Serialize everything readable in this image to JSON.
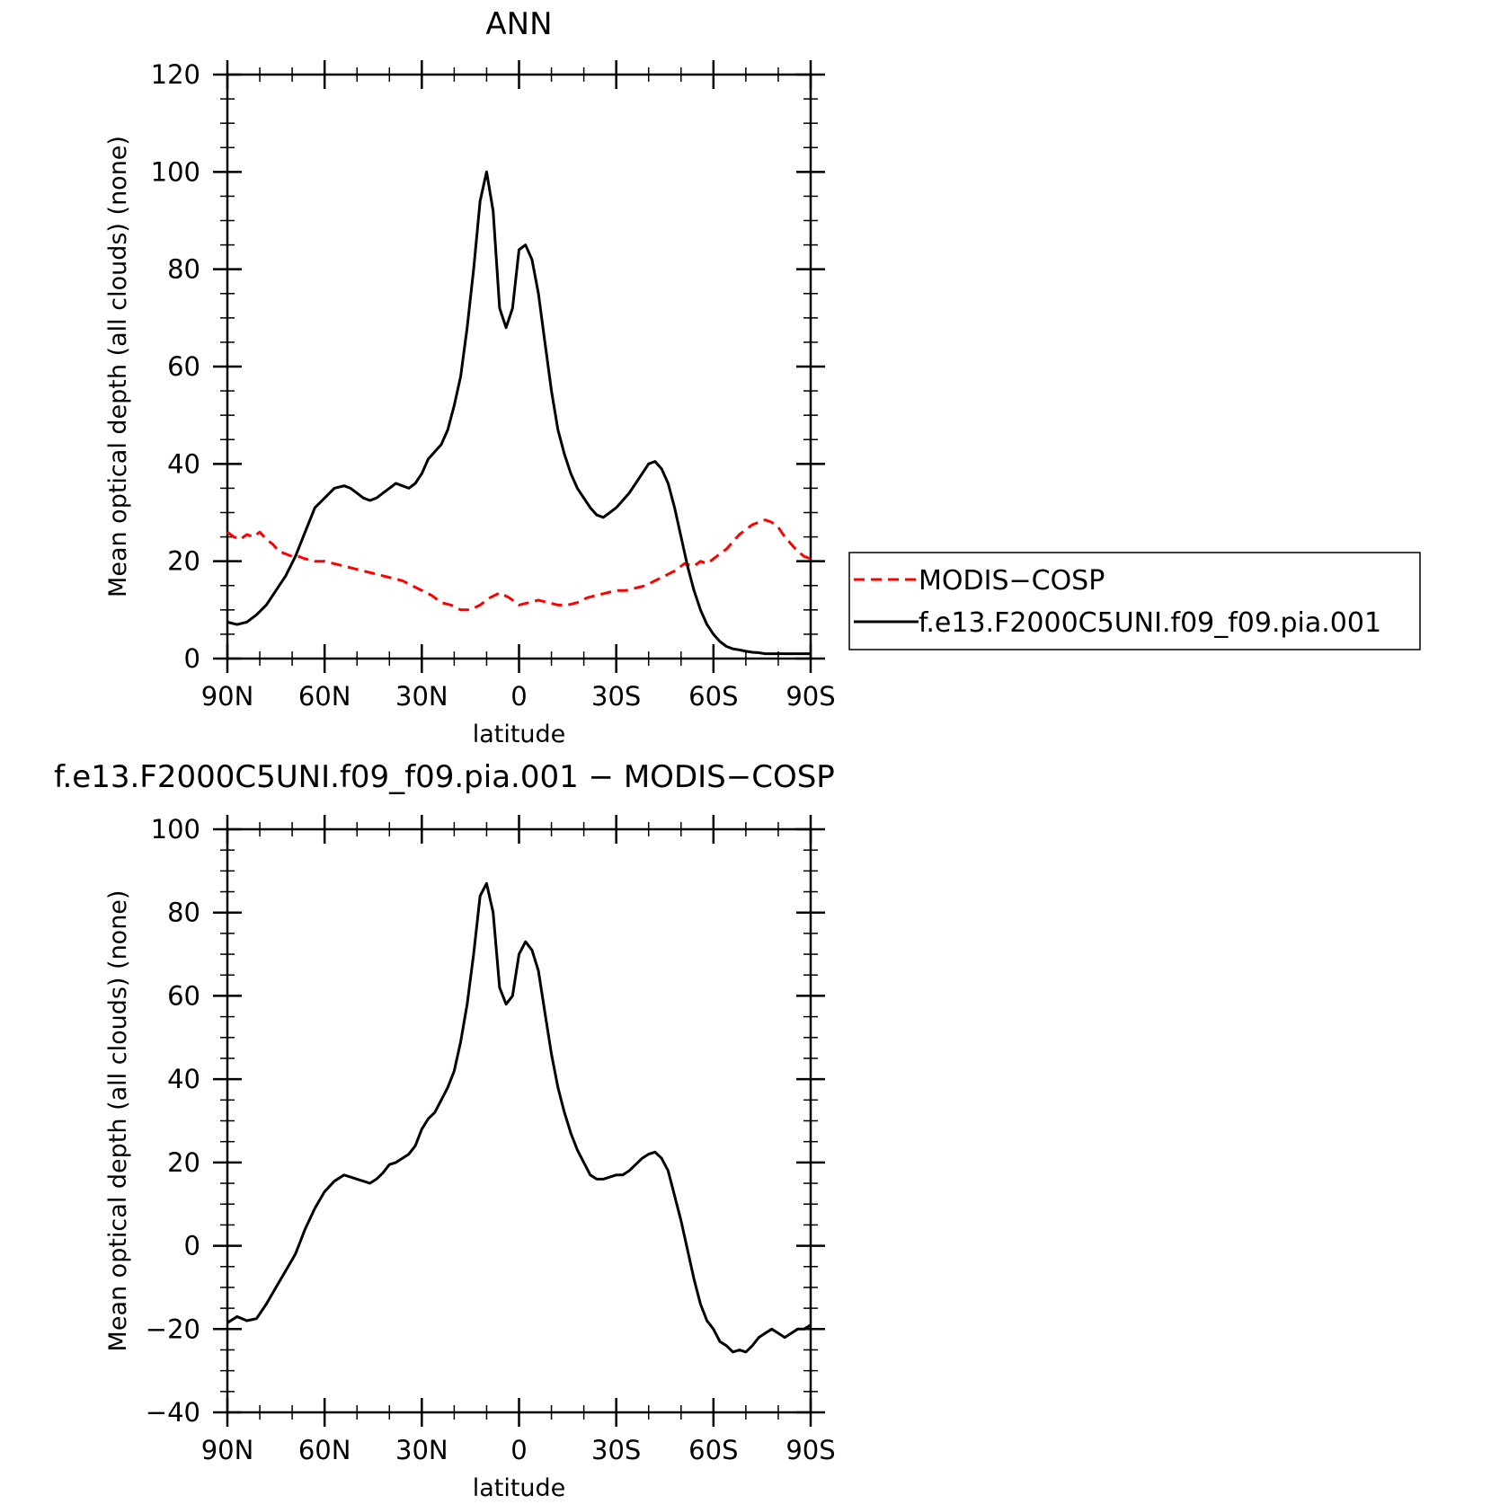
{
  "chart_data": [
    {
      "type": "line",
      "title": "ANN",
      "xlabel": "latitude",
      "ylabel": "Mean optical depth (all clouds) (none)",
      "xlim": [
        90,
        -90
      ],
      "ylim": [
        0,
        120
      ],
      "x_ticks": [
        90,
        60,
        30,
        0,
        -30,
        -60,
        -90
      ],
      "x_tick_labels": [
        "90N",
        "60N",
        "30N",
        "0",
        "30S",
        "60S",
        "90S"
      ],
      "y_ticks": [
        0,
        20,
        40,
        60,
        80,
        100,
        120
      ],
      "y_tick_labels": [
        "0",
        "20",
        "40",
        "60",
        "80",
        "100",
        "120"
      ],
      "legend_position": "right",
      "series": [
        {
          "name": "MODIS−COSP",
          "color": "#ff0000",
          "style": "dashed",
          "x": [
            90,
            88,
            86,
            84,
            82,
            80,
            78,
            76,
            74,
            72,
            70,
            68,
            66,
            63,
            60,
            57,
            54,
            51,
            48,
            45,
            42,
            39,
            36,
            33,
            30,
            27,
            24,
            21,
            18,
            15,
            12,
            9,
            6,
            3,
            0,
            -3,
            -6,
            -9,
            -12,
            -15,
            -18,
            -21,
            -24,
            -27,
            -30,
            -33,
            -36,
            -39,
            -42,
            -45,
            -48,
            -51,
            -54,
            -56,
            -58,
            -60,
            -62,
            -64,
            -66,
            -68,
            -70,
            -72,
            -74,
            -76,
            -78,
            -80,
            -82,
            -84,
            -86,
            -88,
            -90
          ],
          "values": [
            26,
            25,
            24.5,
            25.5,
            25,
            26,
            24.5,
            23.5,
            22,
            21.5,
            21,
            21,
            20.5,
            20,
            20,
            19.5,
            19,
            18.5,
            18,
            17.5,
            17,
            16.5,
            16,
            15,
            14,
            13,
            11.5,
            11,
            10,
            10,
            11,
            12.5,
            13.5,
            12.5,
            11,
            11.5,
            12,
            11.5,
            11,
            11,
            11.5,
            12.5,
            13,
            13.5,
            14,
            14,
            14.5,
            15,
            16,
            17,
            18,
            19.5,
            19,
            20,
            19.5,
            20.5,
            21.5,
            22.5,
            24,
            25.5,
            26.5,
            27.5,
            28,
            28.5,
            28,
            27,
            25,
            23.5,
            22,
            21,
            20.5
          ]
        },
        {
          "name": "f.e13.F2000C5UNI.f09_f09.pia.001",
          "color": "#000000",
          "style": "solid",
          "x": [
            90,
            87,
            84,
            81,
            78,
            75,
            72,
            69,
            66,
            63,
            60,
            57,
            54,
            52,
            50,
            48,
            46,
            44,
            42,
            40,
            38,
            36,
            34,
            32,
            30,
            28,
            26,
            24,
            22,
            20,
            18,
            16,
            14,
            12,
            10,
            8,
            6,
            4,
            2,
            0,
            -2,
            -4,
            -6,
            -8,
            -10,
            -12,
            -14,
            -16,
            -18,
            -20,
            -22,
            -24,
            -26,
            -28,
            -30,
            -32,
            -34,
            -36,
            -38,
            -40,
            -42,
            -44,
            -46,
            -48,
            -50,
            -52,
            -54,
            -56,
            -58,
            -60,
            -62,
            -64,
            -66,
            -68,
            -70,
            -72,
            -74,
            -76,
            -78,
            -80,
            -82,
            -84,
            -86,
            -88,
            -90
          ],
          "values": [
            7.5,
            7,
            7.5,
            9,
            11,
            14,
            17,
            21,
            26,
            31,
            33,
            35,
            35.5,
            35,
            34,
            33,
            32.5,
            33,
            34,
            35,
            36,
            35.5,
            35,
            36,
            38,
            41,
            42.5,
            44,
            47,
            52,
            58,
            68,
            80,
            94,
            100,
            92,
            72,
            68,
            72,
            84,
            85,
            82,
            75,
            65,
            55,
            47,
            42,
            38,
            35,
            33,
            31,
            29.5,
            29,
            30,
            31,
            32.5,
            34,
            36,
            38,
            40,
            40.5,
            39,
            36,
            31,
            25,
            19,
            14,
            10,
            7,
            5,
            3.5,
            2.5,
            2,
            1.8,
            1.5,
            1.3,
            1.2,
            1,
            1,
            1,
            1,
            1,
            1,
            1,
            1
          ]
        }
      ]
    },
    {
      "type": "line",
      "title": "f.e13.F2000C5UNI.f09_f09.pia.001 − MODIS−COSP",
      "xlabel": "latitude",
      "ylabel": "Mean optical depth (all clouds) (none)",
      "xlim": [
        90,
        -90
      ],
      "ylim": [
        -40,
        100
      ],
      "x_ticks": [
        90,
        60,
        30,
        0,
        -30,
        -60,
        -90
      ],
      "x_tick_labels": [
        "90N",
        "60N",
        "30N",
        "0",
        "30S",
        "60S",
        "90S"
      ],
      "y_ticks": [
        -40,
        -20,
        0,
        20,
        40,
        60,
        80,
        100
      ],
      "y_tick_labels": [
        "−40",
        "−20",
        "0",
        "20",
        "40",
        "60",
        "80",
        "100"
      ],
      "series": [
        {
          "color": "#000000",
          "style": "solid",
          "x": [
            90,
            87,
            84,
            81,
            78,
            75,
            72,
            69,
            66,
            63,
            60,
            57,
            54,
            52,
            50,
            48,
            46,
            44,
            42,
            40,
            38,
            36,
            34,
            32,
            30,
            28,
            26,
            24,
            22,
            20,
            18,
            16,
            14,
            12,
            10,
            8,
            6,
            4,
            2,
            0,
            -2,
            -4,
            -6,
            -8,
            -10,
            -12,
            -14,
            -16,
            -18,
            -20,
            -22,
            -24,
            -26,
            -28,
            -30,
            -32,
            -34,
            -36,
            -38,
            -40,
            -42,
            -44,
            -46,
            -48,
            -50,
            -52,
            -54,
            -56,
            -58,
            -60,
            -62,
            -64,
            -66,
            -68,
            -70,
            -72,
            -74,
            -76,
            -78,
            -80,
            -82,
            -84,
            -86,
            -88,
            -90
          ],
          "values": [
            -18.5,
            -17,
            -18,
            -17.5,
            -14,
            -10,
            -6,
            -2,
            4,
            9,
            13,
            15.5,
            17,
            16.5,
            16,
            15.5,
            15,
            16,
            17.5,
            19.5,
            20,
            21,
            22,
            24,
            28,
            30.5,
            32,
            35,
            38,
            42,
            49,
            58,
            70,
            84,
            87,
            80,
            62,
            58,
            60,
            70,
            73,
            71,
            66,
            56,
            46,
            38,
            32,
            27,
            23,
            20,
            17,
            16,
            16,
            16.5,
            17,
            17,
            18,
            19.5,
            21,
            22,
            22.5,
            21,
            18,
            12,
            6,
            -1,
            -8,
            -14,
            -18,
            -20,
            -23,
            -24,
            -25.5,
            -25,
            -25.5,
            -24,
            -22,
            -21,
            -20,
            -21,
            -22,
            -21,
            -20,
            -20,
            -19
          ]
        }
      ]
    }
  ]
}
